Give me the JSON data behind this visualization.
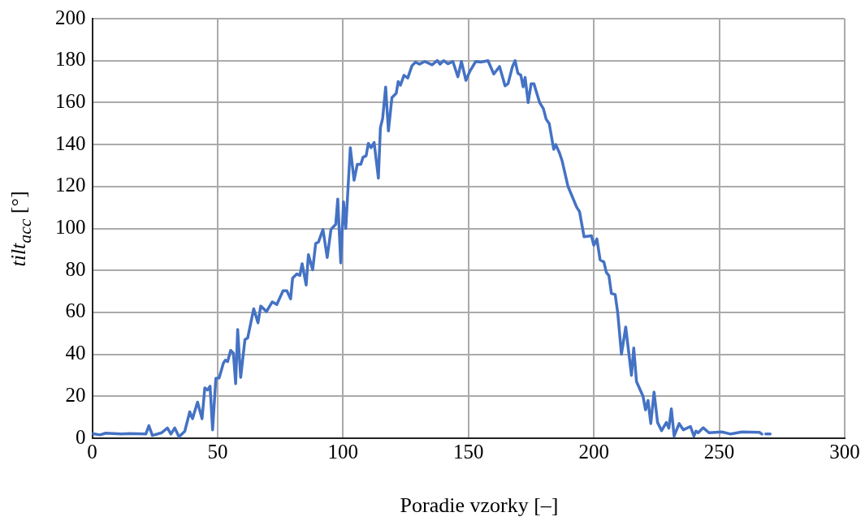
{
  "chart_data": {
    "type": "line",
    "xlabel": "Poradie vzorky [–]",
    "ylabel": "tilt$_{acc}$ [°]",
    "xlim": [
      0,
      300
    ],
    "xticks": [
      0,
      50,
      100,
      150,
      200,
      250,
      300
    ],
    "ylim": [
      0,
      200
    ],
    "yticks": [
      0,
      20,
      40,
      60,
      80,
      100,
      120,
      140,
      160,
      180,
      200
    ],
    "grid": true,
    "marker": "none",
    "line_style": "solid",
    "x": [
      0,
      3.1,
      5.4,
      11.7,
      15,
      21.4,
      22.6,
      24,
      27.7,
      30,
      31.4,
      32.9,
      34.6,
      36.9,
      38.9,
      40,
      42,
      43.8,
      44.9,
      46,
      47,
      48,
      49.3,
      50.6,
      52.3,
      53.1,
      54,
      55.2,
      56.3,
      57.2,
      58,
      59.2,
      60.9,
      62,
      64.4,
      66.1,
      67.2,
      69.5,
      71.8,
      73.6,
      76.1,
      77.6,
      79.1,
      79.9,
      81.6,
      82.8,
      83.7,
      85.3,
      86.2,
      87.9,
      89.1,
      90.2,
      92,
      93.7,
      95.2,
      97.1,
      97.9,
      99.1,
      100.2,
      101.1,
      102.9,
      104.4,
      105.7,
      107.1,
      108,
      109.2,
      110.1,
      111.2,
      112.4,
      114.1,
      114.9,
      115.8,
      117,
      118.1,
      119.5,
      121.2,
      122,
      122.9,
      124.3,
      125.8,
      127.5,
      128.9,
      130.4,
      132.6,
      135.5,
      137.6,
      138.7,
      140.1,
      141.8,
      143.8,
      145.8,
      147.2,
      149,
      150.6,
      152.9,
      155,
      157.8,
      160.1,
      162.4,
      164.6,
      165.8,
      167.5,
      168.6,
      169.7,
      170.9,
      171.8,
      172.6,
      173.8,
      175,
      176.1,
      178.4,
      179.9,
      181,
      182.2,
      184,
      184.8,
      186.3,
      187.4,
      189.7,
      193.2,
      194.3,
      196.1,
      199,
      200,
      201.2,
      202.5,
      204,
      205,
      206,
      207,
      208.5,
      209.5,
      211,
      212.7,
      215,
      215.9,
      217,
      219.6,
      220.6,
      221.6,
      222.7,
      224,
      225.4,
      227,
      228.9,
      229.9,
      230.9,
      232,
      234,
      235.7,
      238.5,
      239.9,
      240.7,
      241.6,
      243.6,
      245.9,
      251,
      254.6,
      259,
      266,
      267,
      268.2,
      268.5,
      270.3
    ],
    "series": [
      {
        "color": "#4472c4",
        "values": [
          2.2,
          1.6,
          2.4,
          2,
          2.2,
          2,
          6,
          1.3,
          2.6,
          4.9,
          2,
          4.9,
          0.7,
          3.3,
          12.6,
          9.3,
          17.2,
          9.3,
          24,
          23,
          24.8,
          4,
          28.5,
          28.7,
          35.8,
          37.2,
          36.5,
          41.9,
          40.5,
          26,
          51.8,
          29,
          47,
          47.8,
          61.7,
          55,
          63,
          60.4,
          65,
          63.7,
          70.3,
          70.3,
          66.4,
          76.3,
          78.3,
          77.6,
          83.2,
          73,
          87.5,
          80.3,
          92.8,
          93.5,
          99.5,
          86.2,
          99.5,
          102,
          114,
          83.6,
          112.7,
          100,
          138.5,
          123,
          130.6,
          130.6,
          134,
          134.6,
          140.5,
          138.5,
          141,
          124,
          148,
          152.5,
          167.4,
          146.5,
          162.4,
          164.4,
          170,
          168.3,
          173,
          171.7,
          177.6,
          179.3,
          178.3,
          179.6,
          178,
          180,
          178.3,
          180,
          178.5,
          179.6,
          172.3,
          179.6,
          170.6,
          175,
          179.6,
          179.3,
          180,
          173.6,
          177.2,
          168,
          169,
          177,
          180,
          174,
          173,
          167.5,
          172,
          160,
          169,
          169,
          160,
          157,
          152,
          150,
          137.7,
          140,
          136,
          132,
          120,
          110,
          108,
          96,
          96.5,
          92,
          95,
          85,
          84,
          79,
          77.5,
          69,
          68.5,
          60,
          40,
          53,
          30,
          43,
          27,
          20,
          13.5,
          18,
          7,
          22,
          7.5,
          3.6,
          7.5,
          4.8,
          14,
          1,
          7,
          4,
          5.6,
          1,
          3.4,
          2.6,
          5,
          2.6,
          3,
          2,
          3,
          2.8,
          2,
          null,
          2,
          2
        ]
      }
    ]
  }
}
